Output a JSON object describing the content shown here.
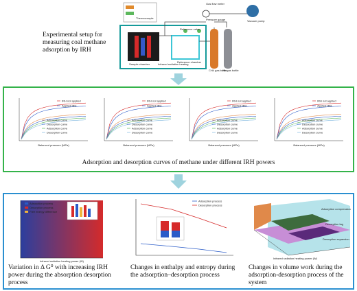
{
  "setup": {
    "caption": "Experimental setup for measuring coal methane adsorption by IRH",
    "labels": [
      "Thermocouple",
      "Pressure gauge",
      "Gas flow meter",
      "Vacuum pump",
      "Reference valve",
      "Sample chamber",
      "Infrared radiation heating",
      "Reference chamber",
      "CH4 gas bottle",
      "He gas bottle"
    ]
  },
  "curves": {
    "caption": "Adsorption and desorption curves of methane under different IRH powers",
    "legend": [
      "IRH not applied",
      "Applied IRH",
      "Adsorption curve",
      "Desorption curve",
      "Adsorption curve",
      "Desorption curve"
    ],
    "x_label": "Balanced pressure (MPa)"
  },
  "results": {
    "panels": [
      {
        "caption": "Variation in Δ G⁰ with increasing IRH power during the absorption desorption process",
        "legend": [
          "Adsorption process",
          "Desorption process",
          "Free energy difference"
        ],
        "x_label": "Infrared radiation heating power (W)"
      },
      {
        "caption": "Changes in enthalpy and entropy during the adsorption–desorption process",
        "legend": [
          "Adsorption process",
          "Desorption process"
        ]
      },
      {
        "caption": "Changes in volume work during the adsorption-desorption process of the system",
        "labels": [
          "Adsorption compression",
          "Desorption lag",
          "Desorption expansion"
        ],
        "x_label": "Infrared radiation heating power (W)"
      }
    ]
  }
}
